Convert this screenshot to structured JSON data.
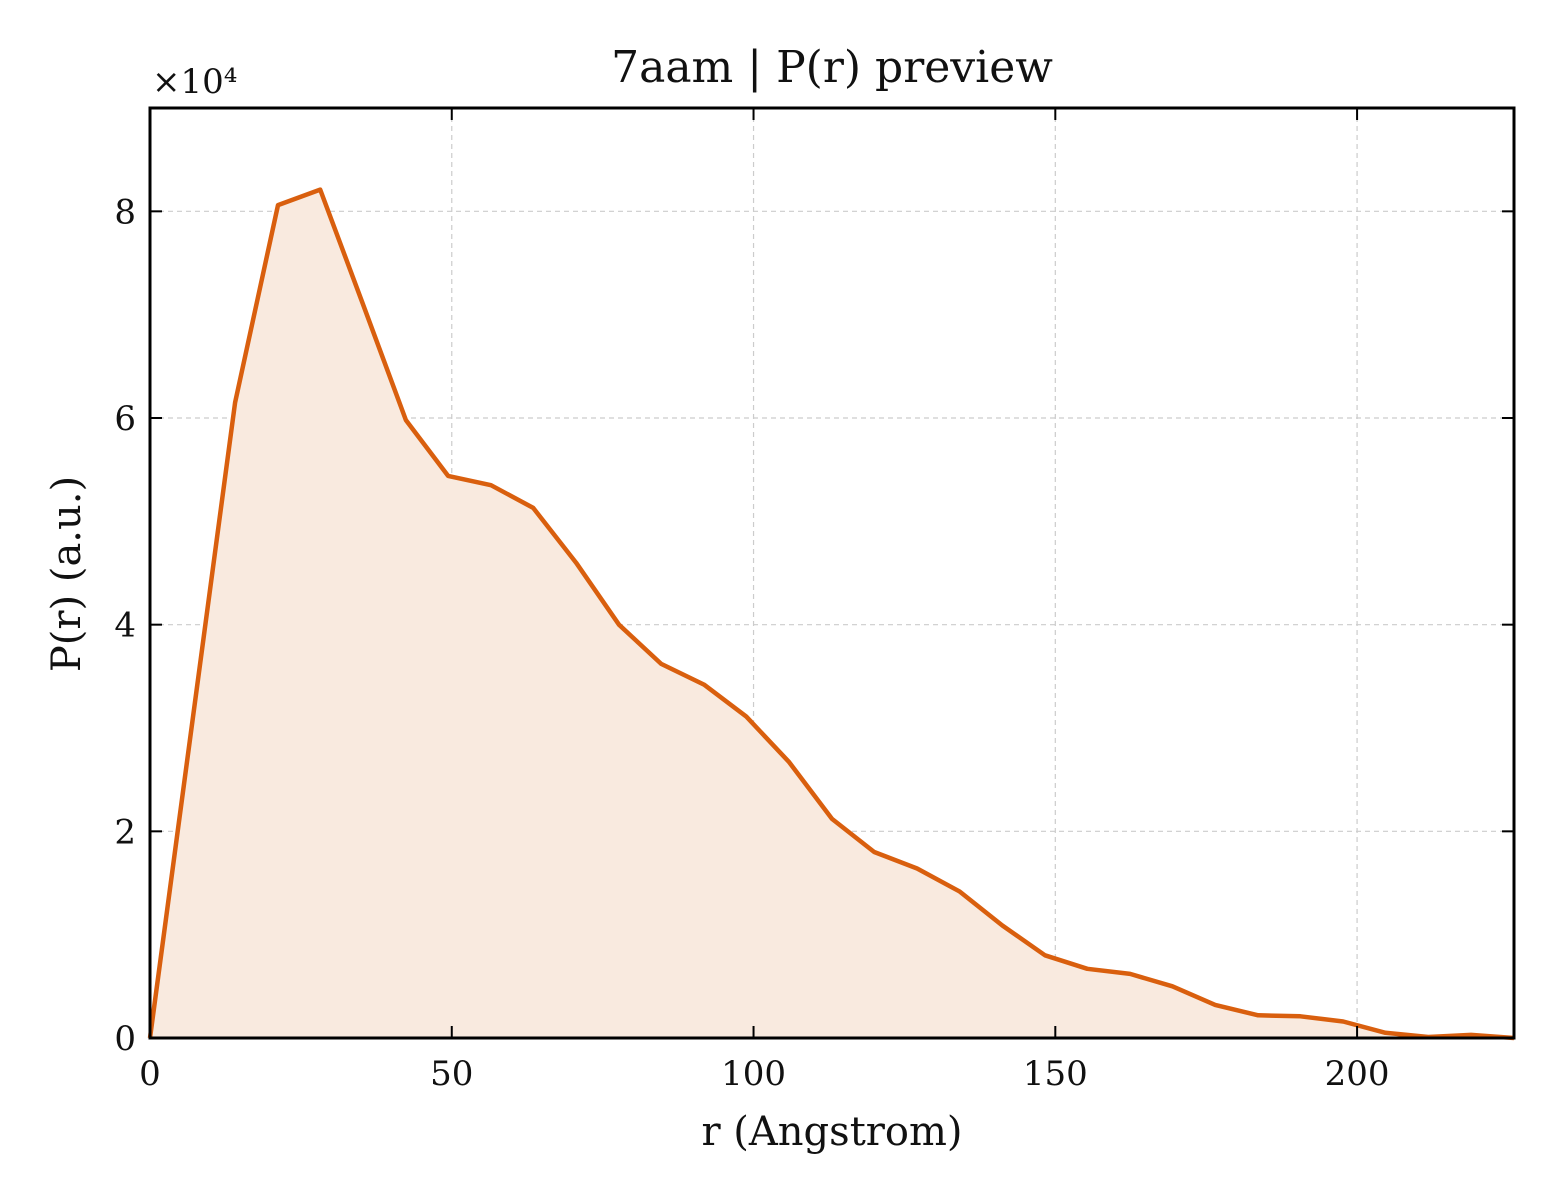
{
  "chart_data": {
    "type": "area",
    "title": "7aam | P(r) preview",
    "xlabel": "r (Angstrom)",
    "ylabel": "P(r) (a.u.)",
    "y_multiplier_label": "×10⁴",
    "y_multiplier": 10000,
    "xlim": [
      0,
      226
    ],
    "ylim": [
      0,
      90000
    ],
    "x_ticks": [
      0,
      50,
      100,
      150,
      200
    ],
    "y_ticks": [
      0,
      20000,
      40000,
      60000,
      80000
    ],
    "y_tick_labels": [
      "0",
      "2",
      "4",
      "6",
      "8"
    ],
    "grid": true,
    "line_color": "#d95f0e",
    "fill_color": "#f9eadf",
    "series": [
      {
        "x": [
          0,
          7.1,
          14.1,
          21.2,
          28.2,
          35.3,
          42.4,
          49.4,
          56.5,
          63.5,
          70.6,
          77.7,
          84.7,
          91.8,
          98.8,
          105.9,
          113.0,
          120.0,
          127.1,
          134.1,
          141.2,
          148.3,
          155.3,
          162.4,
          169.4,
          176.5,
          183.6,
          190.6,
          197.7,
          204.7,
          211.8,
          218.9,
          226.0
        ],
        "values": [
          0,
          31000,
          61500,
          80600,
          82100,
          71000,
          59800,
          54400,
          53500,
          51300,
          46000,
          40000,
          36200,
          34200,
          31100,
          26700,
          21200,
          18000,
          16400,
          14200,
          10900,
          8000,
          6700,
          6200,
          5000,
          3200,
          2200,
          2100,
          1600,
          500,
          100,
          300,
          0
        ]
      }
    ]
  }
}
